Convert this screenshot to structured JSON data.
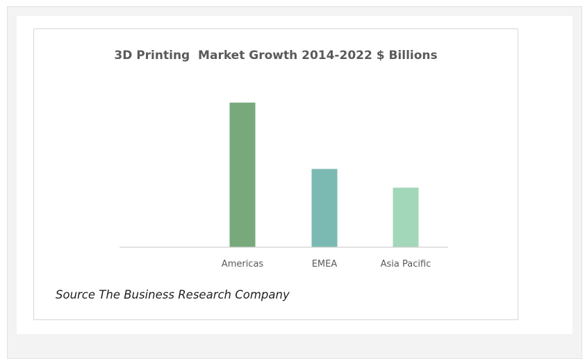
{
  "chart_data": {
    "type": "bar",
    "title": "3D Printing  Market Growth 2014-2022 $ Billions",
    "categories": [
      "Americas",
      "EMEA",
      "Asia Pacific"
    ],
    "values": [
      8.5,
      4.6,
      3.5
    ],
    "colors": [
      "#78a97c",
      "#7bbab2",
      "#a3d7b9"
    ],
    "ylim": [
      0,
      10
    ],
    "xlabel": "",
    "ylabel": "",
    "grid": false,
    "legend": "none"
  },
  "source_note": "Source The Business Research Company"
}
